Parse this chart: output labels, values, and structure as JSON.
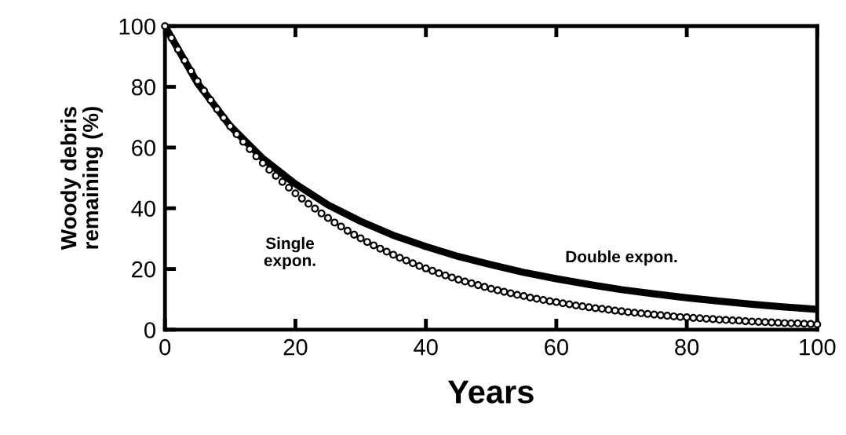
{
  "chart_data": {
    "type": "line",
    "xlabel": "Years",
    "ylabel": "Woody debris\nremaining (%)",
    "xlim": [
      0,
      100
    ],
    "ylim": [
      0,
      100
    ],
    "xticks": [
      0,
      20,
      40,
      60,
      80,
      100
    ],
    "yticks": [
      0,
      20,
      40,
      60,
      80,
      100
    ],
    "grid": false,
    "legend": false,
    "series": [
      {
        "name": "Single\nexpon.",
        "type": "scatter",
        "color": "#000000",
        "marker": "circle",
        "x": [
          0,
          1,
          2,
          3,
          4,
          5,
          6,
          7,
          8,
          9,
          10,
          11,
          12,
          13,
          14,
          15,
          16,
          17,
          18,
          19,
          20,
          21,
          22,
          23,
          24,
          25,
          26,
          27,
          28,
          29,
          30,
          31,
          32,
          33,
          34,
          35,
          36,
          37,
          38,
          39,
          40,
          41,
          42,
          43,
          44,
          45,
          46,
          47,
          48,
          49,
          50,
          51,
          52,
          53,
          54,
          55,
          56,
          57,
          58,
          59,
          60,
          61,
          62,
          63,
          64,
          65,
          66,
          67,
          68,
          69,
          70,
          71,
          72,
          73,
          74,
          75,
          76,
          77,
          78,
          79,
          80,
          81,
          82,
          83,
          84,
          85,
          86,
          87,
          88,
          89,
          90,
          91,
          92,
          93,
          94,
          95,
          96,
          97,
          98,
          99,
          100
        ],
        "values": [
          100,
          96.1,
          92.3,
          88.7,
          85.2,
          81.9,
          78.7,
          75.6,
          72.6,
          69.8,
          67.0,
          64.4,
          61.9,
          59.5,
          57.1,
          54.9,
          52.7,
          50.7,
          48.7,
          46.8,
          44.9,
          43.2,
          41.5,
          39.9,
          38.3,
          36.8,
          35.3,
          34.0,
          32.6,
          31.3,
          30.1,
          28.9,
          27.8,
          26.7,
          25.7,
          24.7,
          23.7,
          22.8,
          21.9,
          21.0,
          20.2,
          19.4,
          18.6,
          17.9,
          17.2,
          16.5,
          15.9,
          15.3,
          14.7,
          14.1,
          13.5,
          13.0,
          12.5,
          12.0,
          11.5,
          11.1,
          10.6,
          10.2,
          9.8,
          9.4,
          9.1,
          8.7,
          8.4,
          8.0,
          7.7,
          7.4,
          7.1,
          6.9,
          6.6,
          6.3,
          6.1,
          5.8,
          5.6,
          5.4,
          5.2,
          5.0,
          4.8,
          4.6,
          4.4,
          4.2,
          4.1,
          3.9,
          3.8,
          3.6,
          3.5,
          3.3,
          3.2,
          3.1,
          3.0,
          2.8,
          2.7,
          2.6,
          2.5,
          2.4,
          2.3,
          2.2,
          2.1,
          2.1,
          2.0,
          1.9,
          1.8
        ]
      },
      {
        "name": "Double expon.",
        "color": "#000000",
        "line_style": "solid",
        "x": [
          0,
          5,
          10,
          15,
          20,
          25,
          30,
          35,
          40,
          45,
          50,
          55,
          60,
          65,
          70,
          75,
          80,
          85,
          90,
          95,
          100
        ],
        "values": [
          100,
          81.2,
          67.1,
          56.4,
          48.0,
          41.1,
          35.7,
          31.1,
          27.4,
          24.1,
          21.4,
          18.9,
          16.8,
          14.9,
          13.2,
          11.8,
          10.5,
          9.4,
          8.4,
          7.5,
          6.7
        ]
      }
    ]
  }
}
